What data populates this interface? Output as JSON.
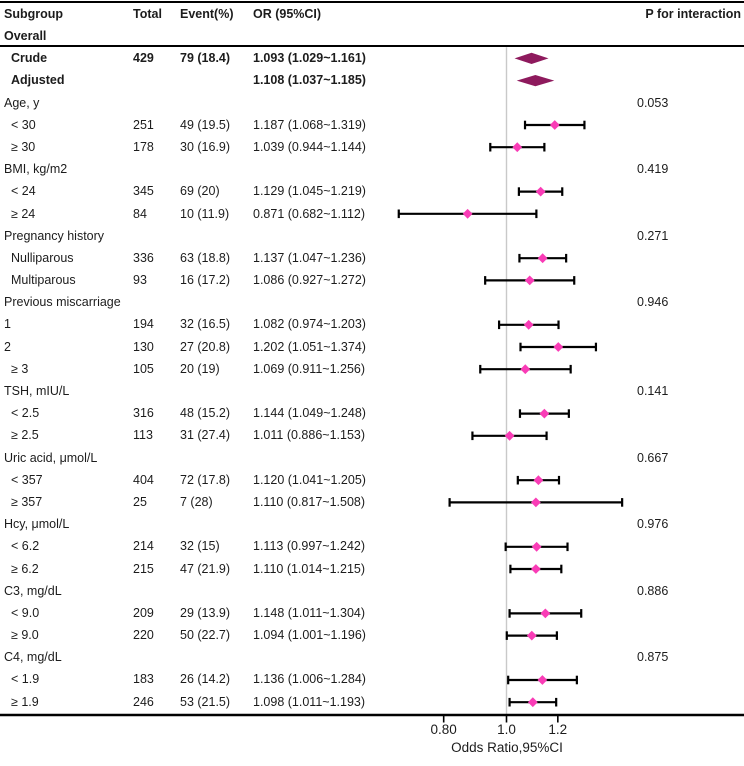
{
  "header": {
    "subgroup": "Subgroup",
    "total": "Total",
    "event": "Event(%)",
    "or": "OR (95%CI)",
    "p": "P for interaction"
  },
  "chart_data": {
    "type": "forest",
    "title": "",
    "axis": {
      "label": "Odds Ratio,95%CI",
      "scale": "log",
      "xlim": [
        0.63,
        1.6
      ],
      "reference_value": 1.0,
      "ticks": [
        {
          "value": 0.8,
          "label": "0.80"
        },
        {
          "value": 1.0,
          "label": "1.0"
        },
        {
          "value": 1.2,
          "label": "1.2"
        }
      ]
    },
    "colors": {
      "point_marker": "#F93CB6",
      "summary_diamond": "#8E1A5D",
      "whisker": "#000000",
      "reference_line": "#C9C9C9",
      "axis_line": "#000000"
    },
    "rows": [
      {
        "label": "Overall",
        "section": true,
        "bold": true,
        "rule_below": true
      },
      {
        "label": "Crude",
        "indent": 1,
        "bold": true,
        "total": "429",
        "event": "79 (18.4)",
        "or_ci": "1.093 (1.029~1.161)",
        "est": 1.093,
        "lo": 1.029,
        "hi": 1.161,
        "marker": "summary"
      },
      {
        "label": "Adjusted",
        "indent": 1,
        "bold": true,
        "or_ci": "1.108 (1.037~1.185)",
        "est": 1.108,
        "lo": 1.037,
        "hi": 1.185,
        "marker": "summary"
      },
      {
        "label": "Age, y",
        "section": true,
        "p": "0.053"
      },
      {
        "label": "< 30",
        "indent": 1,
        "total": "251",
        "event": "49 (19.5)",
        "or_ci": "1.187 (1.068~1.319)",
        "est": 1.187,
        "lo": 1.068,
        "hi": 1.319,
        "marker": "point"
      },
      {
        "label": "≥ 30",
        "indent": 1,
        "total": "178",
        "event": "30 (16.9)",
        "or_ci": "1.039 (0.944~1.144)",
        "est": 1.039,
        "lo": 0.944,
        "hi": 1.144,
        "marker": "point"
      },
      {
        "label": "BMI, kg/m2",
        "section": true,
        "p": "0.419"
      },
      {
        "label": "< 24",
        "indent": 1,
        "total": "345",
        "event": "69 (20)",
        "or_ci": "1.129 (1.045~1.219)",
        "est": 1.129,
        "lo": 1.045,
        "hi": 1.219,
        "marker": "point"
      },
      {
        "label": "≥ 24",
        "indent": 1,
        "total": "84",
        "event": "10 (11.9)",
        "or_ci": "0.871 (0.682~1.112)",
        "est": 0.871,
        "lo": 0.682,
        "hi": 1.112,
        "marker": "point"
      },
      {
        "label": "Pregnancy history",
        "section": true,
        "p": "0.271"
      },
      {
        "label": "Nulliparous",
        "indent": 1,
        "total": "336",
        "event": "63 (18.8)",
        "or_ci": "1.137 (1.047~1.236)",
        "est": 1.137,
        "lo": 1.047,
        "hi": 1.236,
        "marker": "point"
      },
      {
        "label": "Multiparous",
        "indent": 1,
        "total": "93",
        "event": "16 (17.2)",
        "or_ci": "1.086 (0.927~1.272)",
        "est": 1.086,
        "lo": 0.927,
        "hi": 1.272,
        "marker": "point"
      },
      {
        "label": "Previous miscarriage",
        "section": true,
        "p": "0.946"
      },
      {
        "label": "1",
        "indent": 0,
        "total": "194",
        "event": "32 (16.5)",
        "or_ci": "1.082 (0.974~1.203)",
        "est": 1.082,
        "lo": 0.974,
        "hi": 1.203,
        "marker": "point"
      },
      {
        "label": "2",
        "indent": 0,
        "total": "130",
        "event": "27 (20.8)",
        "or_ci": "1.202 (1.051~1.374)",
        "est": 1.202,
        "lo": 1.051,
        "hi": 1.374,
        "marker": "point"
      },
      {
        "label": "≥ 3",
        "indent": 1,
        "total": "105",
        "event": "20 (19)",
        "or_ci": "1.069 (0.911~1.256)",
        "est": 1.069,
        "lo": 0.911,
        "hi": 1.256,
        "marker": "point"
      },
      {
        "label": "TSH, mIU/L",
        "section": true,
        "p": "0.141"
      },
      {
        "label": "< 2.5",
        "indent": 1,
        "total": "316",
        "event": "48 (15.2)",
        "or_ci": "1.144 (1.049~1.248)",
        "est": 1.144,
        "lo": 1.049,
        "hi": 1.248,
        "marker": "point"
      },
      {
        "label": "≥ 2.5",
        "indent": 1,
        "total": "113",
        "event": "31 (27.4)",
        "or_ci": "1.011 (0.886~1.153)",
        "est": 1.011,
        "lo": 0.886,
        "hi": 1.153,
        "marker": "point"
      },
      {
        "label": "Uric acid, μmol/L",
        "section": true,
        "p": "0.667"
      },
      {
        "label": "< 357",
        "indent": 1,
        "total": "404",
        "event": "72 (17.8)",
        "or_ci": "1.120 (1.041~1.205)",
        "est": 1.12,
        "lo": 1.041,
        "hi": 1.205,
        "marker": "point"
      },
      {
        "label": "≥ 357",
        "indent": 1,
        "total": "25",
        "event": "7 (28)",
        "or_ci": "1.110 (0.817~1.508)",
        "est": 1.11,
        "lo": 0.817,
        "hi": 1.508,
        "marker": "point"
      },
      {
        "label": "Hcy, μmol/L",
        "section": true,
        "p": "0.976"
      },
      {
        "label": "< 6.2",
        "indent": 1,
        "total": "214",
        "event": "32 (15)",
        "or_ci": "1.113 (0.997~1.242)",
        "est": 1.113,
        "lo": 0.997,
        "hi": 1.242,
        "marker": "point"
      },
      {
        "label": "≥ 6.2",
        "indent": 1,
        "total": "215",
        "event": "47 (21.9)",
        "or_ci": "1.110 (1.014~1.215)",
        "est": 1.11,
        "lo": 1.014,
        "hi": 1.215,
        "marker": "point"
      },
      {
        "label": "C3, mg/dL",
        "section": true,
        "p": "0.886"
      },
      {
        "label": "< 9.0",
        "indent": 1,
        "total": "209",
        "event": "29 (13.9)",
        "or_ci": "1.148 (1.011~1.304)",
        "est": 1.148,
        "lo": 1.011,
        "hi": 1.304,
        "marker": "point"
      },
      {
        "label": "≥ 9.0",
        "indent": 1,
        "total": "220",
        "event": "50 (22.7)",
        "or_ci": "1.094 (1.001~1.196)",
        "est": 1.094,
        "lo": 1.001,
        "hi": 1.196,
        "marker": "point"
      },
      {
        "label": "C4, mg/dL",
        "section": true,
        "p": "0.875"
      },
      {
        "label": "< 1.9",
        "indent": 1,
        "total": "183",
        "event": "26 (14.2)",
        "or_ci": "1.136 (1.006~1.284)",
        "est": 1.136,
        "lo": 1.006,
        "hi": 1.284,
        "marker": "point"
      },
      {
        "label": "≥ 1.9",
        "indent": 1,
        "total": "246",
        "event": "53 (21.5)",
        "or_ci": "1.098 (1.011~1.193)",
        "est": 1.098,
        "lo": 1.011,
        "hi": 1.193,
        "marker": "point"
      }
    ]
  }
}
